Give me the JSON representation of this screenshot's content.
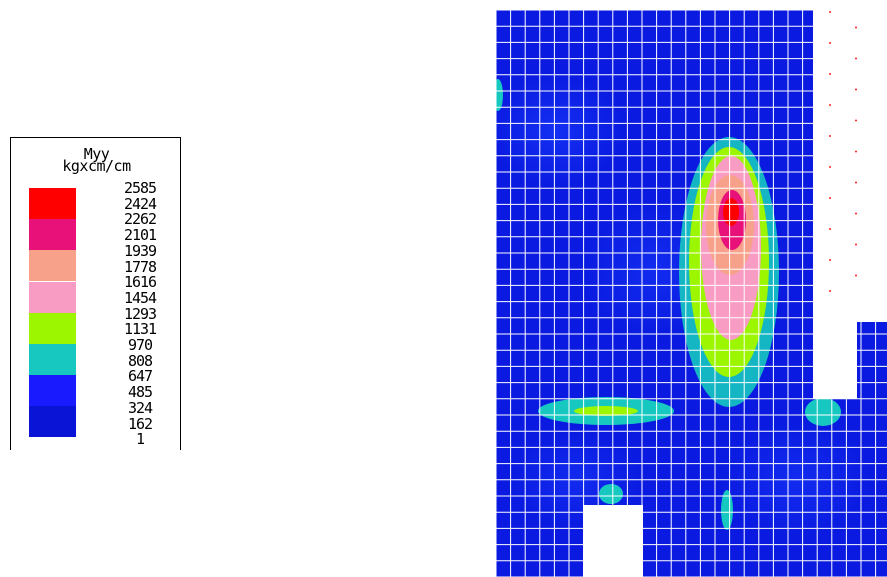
{
  "legend": {
    "title": "Myy",
    "units": "kgxcm/cm",
    "ticks": [
      "2585",
      "2424",
      "2262",
      "2101",
      "1939",
      "1778",
      "1616",
      "1454",
      "1293",
      "1131",
      "970",
      "808",
      "647",
      "485",
      "324",
      "162",
      "1"
    ],
    "bands": [
      {
        "color": "#ff0000"
      },
      {
        "color": "#e8117a"
      },
      {
        "color": "#f7a08a"
      },
      {
        "color": "#f89cc4"
      },
      {
        "color": "#9cf600"
      },
      {
        "color": "#16c8c0"
      },
      {
        "color": "#1a1aff"
      },
      {
        "color": "#0a14d6"
      }
    ]
  },
  "colors": {
    "mesh_background": "#0a1ae0",
    "mesh_lines": "#ffffff",
    "markers": "#ff2020"
  }
}
